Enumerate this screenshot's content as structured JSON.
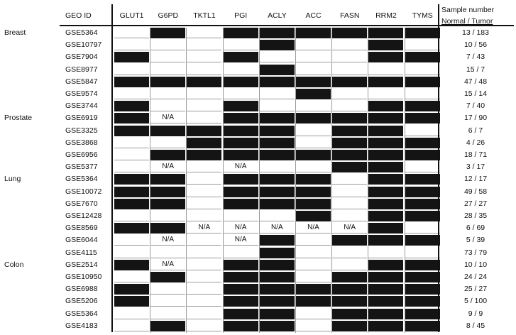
{
  "header": {
    "geo_id": "GEO ID",
    "genes": [
      "GLUT1",
      "G6PD",
      "TKTL1",
      "PGI",
      "ACLY",
      "ACC",
      "FASN",
      "RRM2",
      "TYMS"
    ],
    "sample_number_line1": "Sample number",
    "sample_number_line2": "Normal / Tumor"
  },
  "legend": {
    "positive_color": "#141414",
    "negative_color": "#ffffff"
  },
  "rows": [
    {
      "tissue": "Breast",
      "geo": "GSE5364",
      "cells": [
        0,
        1,
        0,
        1,
        1,
        1,
        1,
        1,
        1
      ],
      "count": "13 / 183"
    },
    {
      "tissue": "",
      "geo": "GSE10797",
      "cells": [
        0,
        0,
        0,
        0,
        1,
        0,
        0,
        1,
        0
      ],
      "count": "10 / 56"
    },
    {
      "tissue": "",
      "geo": "GSE7904",
      "cells": [
        1,
        0,
        0,
        1,
        0,
        0,
        0,
        1,
        1
      ],
      "count": "7 / 43"
    },
    {
      "tissue": "",
      "geo": "GSE8977",
      "cells": [
        0,
        0,
        0,
        0,
        1,
        0,
        0,
        0,
        0
      ],
      "count": "15 / 7"
    },
    {
      "tissue": "",
      "geo": "GSE5847",
      "cells": [
        1,
        1,
        1,
        1,
        1,
        1,
        1,
        1,
        1
      ],
      "count": "47 / 48"
    },
    {
      "tissue": "",
      "geo": "GSE9574",
      "cells": [
        0,
        0,
        0,
        0,
        0,
        1,
        0,
        0,
        0
      ],
      "count": "15 / 14"
    },
    {
      "tissue": "",
      "geo": "GSE3744",
      "cells": [
        1,
        0,
        0,
        1,
        0,
        0,
        0,
        1,
        1
      ],
      "count": "7 / 40"
    },
    {
      "tissue": "Prostate",
      "geo": "GSE6919",
      "cells": [
        1,
        "N/A",
        0,
        1,
        1,
        1,
        1,
        1,
        1
      ],
      "count": "17 / 90"
    },
    {
      "tissue": "",
      "geo": "GSE3325",
      "cells": [
        1,
        1,
        1,
        1,
        1,
        0,
        1,
        1,
        0
      ],
      "count": "6 / 7"
    },
    {
      "tissue": "",
      "geo": "GSE3868",
      "cells": [
        0,
        0,
        1,
        1,
        1,
        0,
        1,
        1,
        1
      ],
      "count": "4 / 26"
    },
    {
      "tissue": "",
      "geo": "GSE6956",
      "cells": [
        0,
        1,
        1,
        1,
        1,
        1,
        1,
        1,
        1
      ],
      "count": "18 / 71"
    },
    {
      "tissue": "",
      "geo": "GSE5377",
      "cells": [
        0,
        "N/A",
        0,
        "N/A",
        0,
        0,
        1,
        1,
        0
      ],
      "count": "3 / 17"
    },
    {
      "tissue": "Lung",
      "geo": "GSE5364",
      "cells": [
        1,
        1,
        0,
        1,
        1,
        1,
        0,
        1,
        1
      ],
      "count": "12 / 17"
    },
    {
      "tissue": "",
      "geo": "GSE10072",
      "cells": [
        1,
        1,
        0,
        1,
        1,
        1,
        0,
        1,
        1
      ],
      "count": "49 / 58"
    },
    {
      "tissue": "",
      "geo": "GSE7670",
      "cells": [
        1,
        1,
        0,
        1,
        1,
        1,
        0,
        1,
        1
      ],
      "count": "27 / 27"
    },
    {
      "tissue": "",
      "geo": "GSE12428",
      "cells": [
        0,
        0,
        0,
        0,
        0,
        1,
        0,
        1,
        1
      ],
      "count": "28 / 35"
    },
    {
      "tissue": "",
      "geo": "GSE8569",
      "cells": [
        1,
        1,
        "N/A",
        "N/A",
        "N/A",
        "N/A",
        "N/A",
        1,
        0
      ],
      "count": "6 / 69"
    },
    {
      "tissue": "",
      "geo": "GSE6044",
      "cells": [
        0,
        "N/A",
        0,
        "N/A",
        1,
        0,
        1,
        1,
        1
      ],
      "count": "5 / 39"
    },
    {
      "tissue": "",
      "geo": "GSE4115",
      "cells": [
        0,
        0,
        0,
        0,
        1,
        0,
        0,
        0,
        0
      ],
      "count": "73 / 79"
    },
    {
      "tissue": "Colon",
      "geo": "GSE2514",
      "cells": [
        1,
        "N/A",
        0,
        1,
        1,
        0,
        0,
        1,
        1
      ],
      "count": "10 / 10"
    },
    {
      "tissue": "",
      "geo": "GSE10950",
      "cells": [
        0,
        1,
        0,
        1,
        1,
        0,
        1,
        1,
        1
      ],
      "count": "24 / 24"
    },
    {
      "tissue": "",
      "geo": "GSE6988",
      "cells": [
        1,
        0,
        0,
        1,
        1,
        1,
        1,
        1,
        1
      ],
      "count": "25 / 27"
    },
    {
      "tissue": "",
      "geo": "GSE5206",
      "cells": [
        1,
        0,
        0,
        1,
        1,
        1,
        1,
        1,
        1
      ],
      "count": "5 / 100"
    },
    {
      "tissue": "",
      "geo": "GSE5364",
      "cells": [
        0,
        0,
        0,
        1,
        1,
        0,
        1,
        1,
        1
      ],
      "count": "9 / 9"
    },
    {
      "tissue": "",
      "geo": "GSE4183",
      "cells": [
        0,
        1,
        0,
        1,
        1,
        0,
        1,
        1,
        1
      ],
      "count": "8 / 45"
    }
  ]
}
